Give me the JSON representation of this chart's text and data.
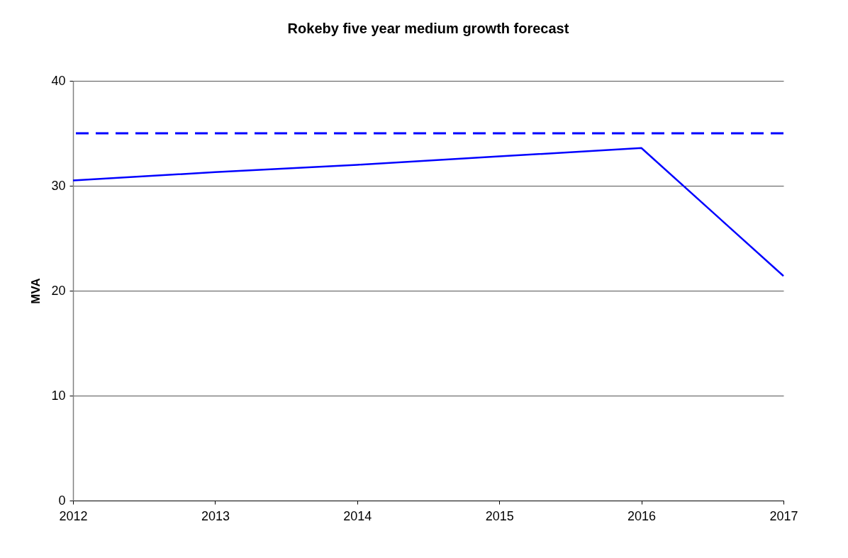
{
  "chart_data": {
    "type": "line",
    "title": "Rokeby five year medium growth forecast",
    "ylabel": "MVA",
    "categories": [
      "2012",
      "2013",
      "2014",
      "2015",
      "2016",
      "2017"
    ],
    "series": [
      {
        "color": "#0000ff",
        "values": [
          30.5,
          31.3,
          32.0,
          32.8,
          33.6,
          21.4
        ]
      }
    ],
    "ylim": [
      0,
      40
    ],
    "yticks": [
      0,
      10,
      20,
      30,
      40
    ],
    "grid": "y",
    "line_style": "solid",
    "ref_lines": [
      {
        "axis": "y",
        "value": 35,
        "color": "#0000ff",
        "line_style": "dashed"
      }
    ]
  }
}
